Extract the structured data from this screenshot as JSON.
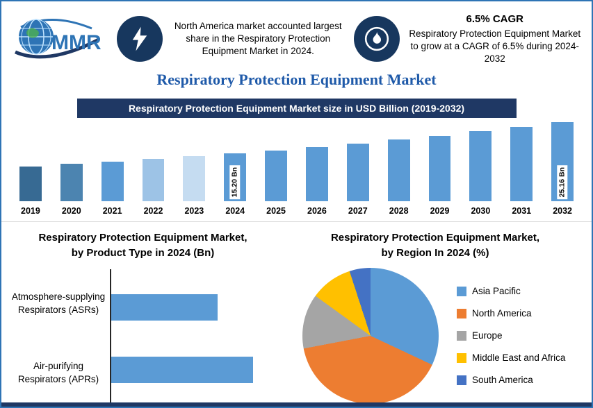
{
  "page": {
    "title": "Respiratory Protection Equipment Market"
  },
  "header": {
    "logo_text": "MMR",
    "callout1": {
      "icon": "lightning-icon",
      "text": "North America market accounted largest share in the Respiratory Protection Equipment Market in 2024."
    },
    "callout2": {
      "icon": "flame-icon",
      "headline": "6.5% CAGR",
      "text": "Respiratory Protection Equipment Market to grow at a CAGR of 6.5% during 2024-2032"
    }
  },
  "theme": {
    "navy": "#1F3864",
    "steel_blue": "#5B9BD5",
    "title_blue": "#1F5AA9",
    "orange": "#ED7D31",
    "gray": "#A5A5A5",
    "yellow": "#FFC000",
    "dark_blue": "#4472C4"
  },
  "chart_data": [
    {
      "type": "bar",
      "title": "Respiratory Protection Equipment Market size in USD Billion (2019-2032)",
      "categories": [
        "2019",
        "2020",
        "2021",
        "2022",
        "2023",
        "2024",
        "2025",
        "2026",
        "2027",
        "2028",
        "2029",
        "2030",
        "2031",
        "2032"
      ],
      "values": [
        11.09,
        11.81,
        12.58,
        13.4,
        14.27,
        15.2,
        16.19,
        17.24,
        18.36,
        19.55,
        20.82,
        22.18,
        23.62,
        25.16
      ],
      "bar_colors": [
        "#376A93",
        "#4C84B0",
        "#5B9BD5",
        "#9DC3E6",
        "#C5DCF1",
        "#5B9BD5",
        "#5B9BD5",
        "#5B9BD5",
        "#5B9BD5",
        "#5B9BD5",
        "#5B9BD5",
        "#5B9BD5",
        "#5B9BD5",
        "#5B9BD5"
      ],
      "data_labels": {
        "2024": "15.20 Bn",
        "2032": "25.16 Bn"
      },
      "xlabel": "",
      "ylabel": "USD Billion",
      "ylim": [
        0,
        26
      ],
      "grid": false,
      "legend_position": "none"
    },
    {
      "type": "bar",
      "orientation": "horizontal",
      "title": "Respiratory Protection Equipment Market, by Product Type in 2024 (Bn)",
      "categories": [
        "Atmosphere-supplying Respirators (ASRs)",
        "Air-purifying Respirators (APRs)"
      ],
      "values": [
        6.5,
        8.7
      ],
      "bar_color": "#5B9BD5",
      "xlim": [
        0,
        10
      ],
      "grid": false,
      "legend_position": "none"
    },
    {
      "type": "pie",
      "title": "Respiratory Protection Equipment Market, by Region In 2024 (%)",
      "labels": [
        "Asia Pacific",
        "North America",
        "Europe",
        "Middle East and Africa",
        "South America"
      ],
      "values": [
        32,
        40,
        13,
        10,
        5
      ],
      "colors": [
        "#5B9BD5",
        "#ED7D31",
        "#A5A5A5",
        "#FFC000",
        "#4472C4"
      ],
      "legend_position": "right"
    }
  ]
}
